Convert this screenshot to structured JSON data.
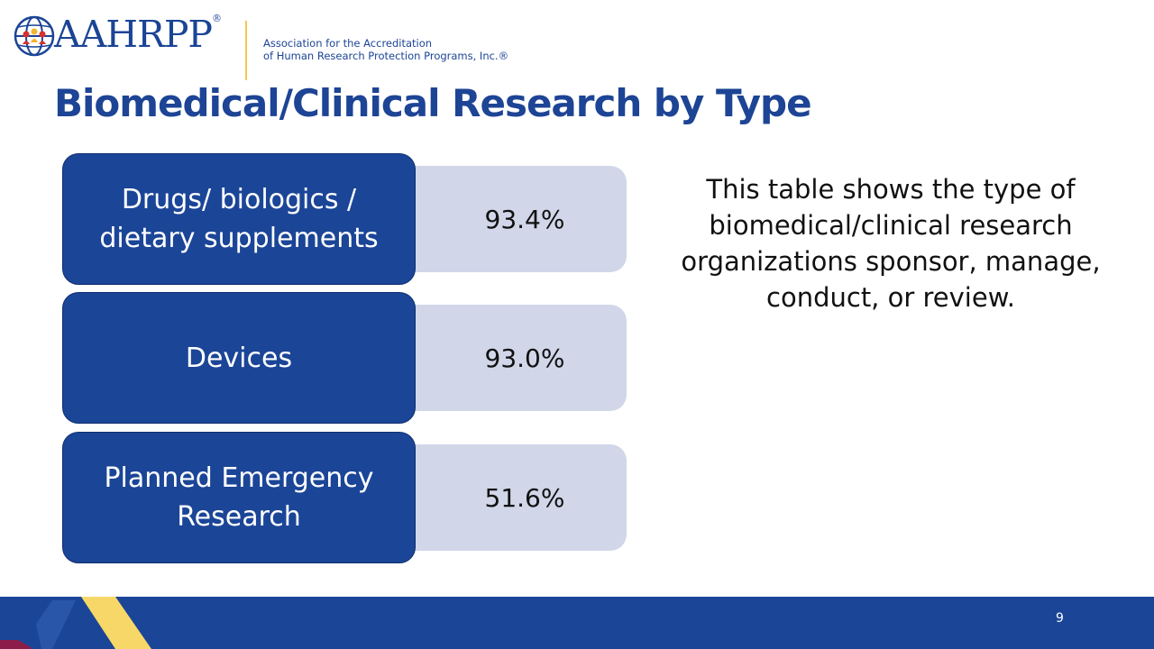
{
  "header": {
    "logo_text": "AAHRPP",
    "logo_registered": "®",
    "org_line1": "Association for the Accreditation",
    "org_line2": "of Human Research Protection Programs, Inc.®",
    "brand_color": "#1b4495",
    "accent_color": "#f2c94c"
  },
  "title": "Biomedical/Clinical Research by Type",
  "rows": [
    {
      "label": "Drugs/ biologics / dietary supplements",
      "value": "93.4%"
    },
    {
      "label": "Devices",
      "value": "93.0%"
    },
    {
      "label": "Planned Emergency Research",
      "value": "51.6%"
    }
  ],
  "description": "This table shows the type of biomedical/clinical research organizations sponsor, manage, conduct, or review.",
  "footer": {
    "page_number": "9"
  },
  "colors": {
    "label_box": "#1b4597",
    "value_box": "#d1d7e9",
    "footer_band": "#1b4597",
    "footer_yellow": "#f7d767",
    "footer_maroon": "#8c1d4a"
  }
}
